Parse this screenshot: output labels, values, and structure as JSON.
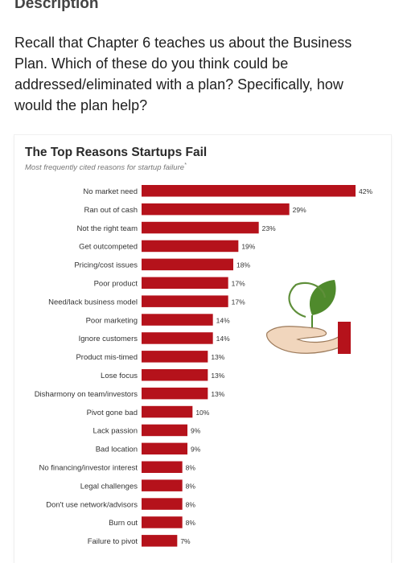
{
  "header": {
    "title": "Description"
  },
  "prompt": {
    "text": "Recall that Chapter 6 teaches us about the Business Plan.  Which of these do you think could be addressed/eliminated with a plan? Specifically, how would the plan help?"
  },
  "colors": {
    "bar": "#b5121b",
    "plant_leaf": "#4f8a2c",
    "hand": "#f1d6bd",
    "cuff": "#b5121b"
  },
  "chart_data": {
    "type": "bar",
    "orientation": "horizontal",
    "title": "The Top Reasons Startups Fail",
    "subtitle": "Most frequently cited reasons for startup failure",
    "subtitle_marker": "*",
    "categories": [
      "No market need",
      "Ran out of cash",
      "Not the right team",
      "Get outcompeted",
      "Pricing/cost issues",
      "Poor product",
      "Need/lack business model",
      "Poor marketing",
      "Ignore customers",
      "Product mis-timed",
      "Lose focus",
      "Disharmony on team/investors",
      "Pivot gone bad",
      "Lack passion",
      "Bad location",
      "No financing/investor interest",
      "Legal challenges",
      "Don't use network/advisors",
      "Burn out",
      "Failure to pivot"
    ],
    "values": [
      42,
      29,
      23,
      19,
      18,
      17,
      17,
      14,
      14,
      13,
      13,
      13,
      10,
      9,
      9,
      8,
      8,
      8,
      8,
      7
    ],
    "value_suffix": "%",
    "xlim": [
      0,
      42
    ],
    "grid": false,
    "legend": "none",
    "decorative_icon": "plant-in-hand-icon"
  }
}
